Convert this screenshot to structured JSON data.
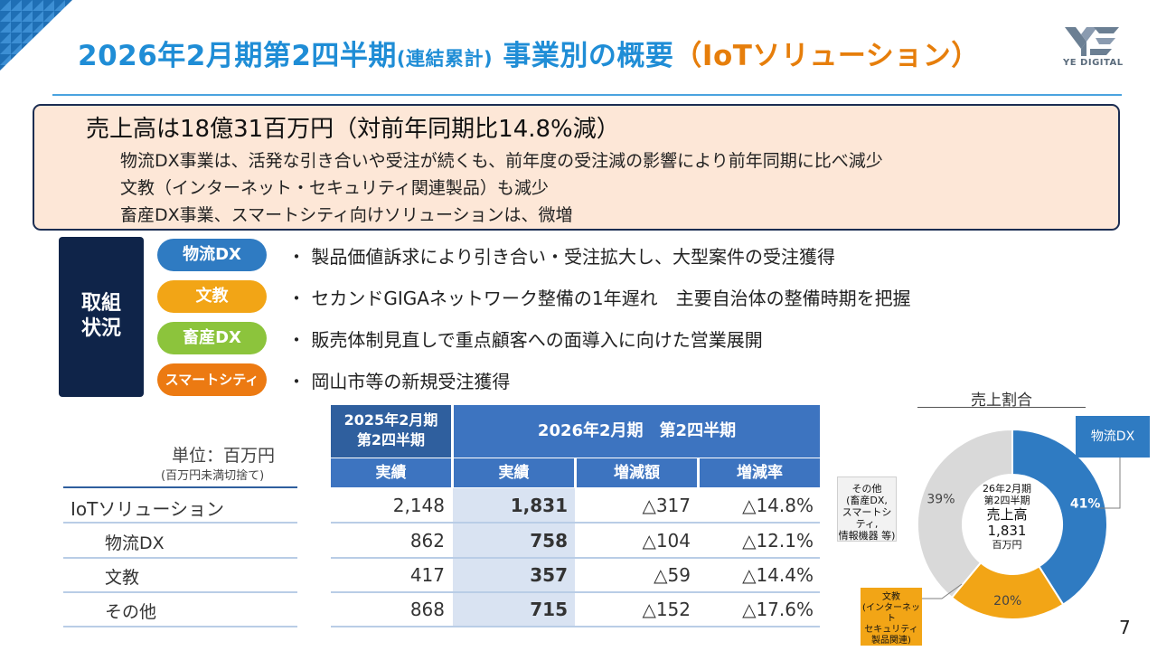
{
  "header": {
    "title_main": "2026年2月期第2四半期",
    "title_small": "(連結累計)",
    "title_rest": " 事業別の概要",
    "title_iot": "（IoTソリューション）",
    "logo_text": "YE DIGITAL"
  },
  "summary": {
    "headline": "売上高は18億31百万円（対前年同期比14.8%減）",
    "lines": [
      "物流DX事業は、活発な引き合いや受注が続くも、前年度の受注減の影響により前年同期に比べ減少",
      "文教（インターネット・セキュリティ関連製品）も減少",
      "畜産DX事業、スマートシティ向けソリューションは、微増"
    ]
  },
  "initiatives": {
    "label": "取組\n状況",
    "items": [
      {
        "tag": "物流DX",
        "color": "#2f7bc2",
        "text": "・ 製品価値訴求により引き合い・受注拡大し、大型案件の受注獲得"
      },
      {
        "tag": "文教",
        "color": "#f2a516",
        "text": "・ セカンドGIGAネットワーク整備の1年遅れ　主要自治体の整備時期を把握"
      },
      {
        "tag": "畜産DX",
        "color": "#8cc43c",
        "text": "・ 販売体制見直しで重点顧客への面導入に向けた営業展開"
      },
      {
        "tag": "スマートシティ",
        "color": "#ec7a12",
        "text": "・ 岡山市等の新規受注獲得"
      }
    ]
  },
  "table": {
    "unit": "単位：百万円",
    "unit_note": "(百万円未満切捨て)",
    "prev_header": "2025年2月期\n第2四半期",
    "cur_header": "2026年2月期　第2四半期",
    "sub_headers": [
      "実績",
      "実績",
      "増減額",
      "増減率"
    ],
    "rows": [
      {
        "label": "IoTソリューション",
        "prev": "2,148",
        "cur": "1,831",
        "diff": "△317",
        "rate": "△14.8%"
      },
      {
        "label": "物流DX",
        "prev": "862",
        "cur": "758",
        "diff": "△104",
        "rate": "△12.1%"
      },
      {
        "label": "文教",
        "prev": "417",
        "cur": "357",
        "diff": "△59",
        "rate": "△14.4%"
      },
      {
        "label": "その他",
        "prev": "868",
        "cur": "715",
        "diff": "△152",
        "rate": "△17.6%"
      }
    ]
  },
  "chart_data": {
    "type": "pie",
    "title": "売上割合",
    "center_lines": [
      "26年2月期",
      "第2四半期",
      "売上高",
      "1,831",
      "百万円"
    ],
    "slices": [
      {
        "label": "物流DX",
        "percent": 41,
        "value_label": "41%",
        "color": "#2f7bc2"
      },
      {
        "label": "文教\n(インターネット\nセキュリティ\n製品関連)",
        "percent": 20,
        "value_label": "20%",
        "color": "#f2a516"
      },
      {
        "label": "その他\n(畜産DX,\nスマートシティ,\n情報機器 等)",
        "percent": 39,
        "value_label": "39%",
        "color": "#d9d9d9"
      }
    ]
  },
  "page": {
    "number": "7"
  }
}
